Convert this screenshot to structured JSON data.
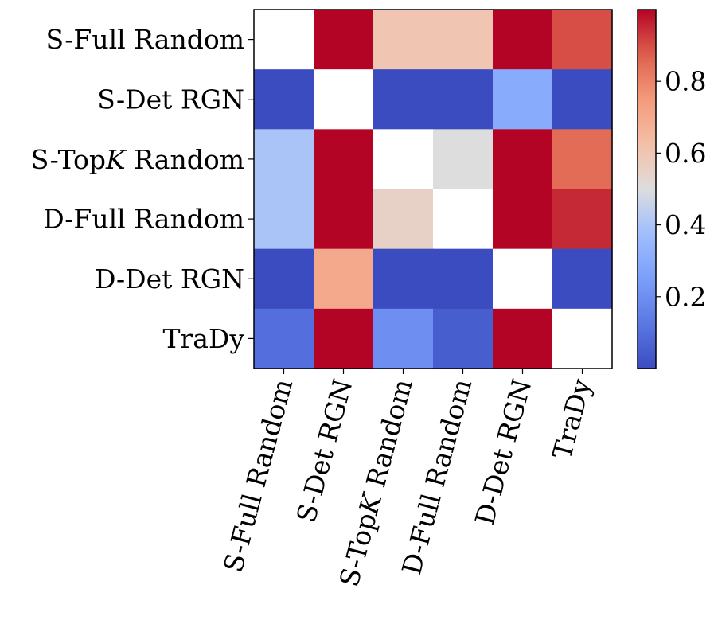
{
  "chart_data": {
    "type": "heatmap",
    "row_labels": [
      "S-Full Random",
      "S-Det RGN",
      "S-TopK Random",
      "D-Full Random",
      "D-Det RGN",
      "TraDy"
    ],
    "col_labels": [
      "S-Full Random",
      "S-Det RGN",
      "S-TopK Random",
      "D-Full Random",
      "D-Det RGN",
      "TraDy"
    ],
    "values": [
      [
        null,
        1.0,
        0.6,
        0.6,
        1.0,
        0.9
      ],
      [
        0.0,
        null,
        0.0,
        0.0,
        0.3,
        0.0
      ],
      [
        0.4,
        1.0,
        null,
        0.5,
        1.0,
        0.85
      ],
      [
        0.4,
        1.0,
        0.55,
        null,
        1.0,
        0.95
      ],
      [
        0.0,
        0.7,
        0.0,
        0.0,
        null,
        0.0
      ],
      [
        0.1,
        1.0,
        0.2,
        0.05,
        1.0,
        null
      ]
    ],
    "diagonal": "blank (white)",
    "colormap": "coolwarm",
    "vmin": 0.0,
    "vmax": 1.0,
    "colorbar_ticks": [
      0.2,
      0.4,
      0.6,
      0.8
    ],
    "colorbar_tick_labels": [
      "0.2",
      "0.4",
      "0.6",
      "0.8"
    ],
    "title": "",
    "xlabel": "",
    "ylabel": ""
  },
  "colors": {
    "cool_end": "#3b4cc0",
    "mid": "#dddddd",
    "warm_end": "#b40426",
    "diagonal": "#ffffff",
    "frame": "#000000"
  }
}
